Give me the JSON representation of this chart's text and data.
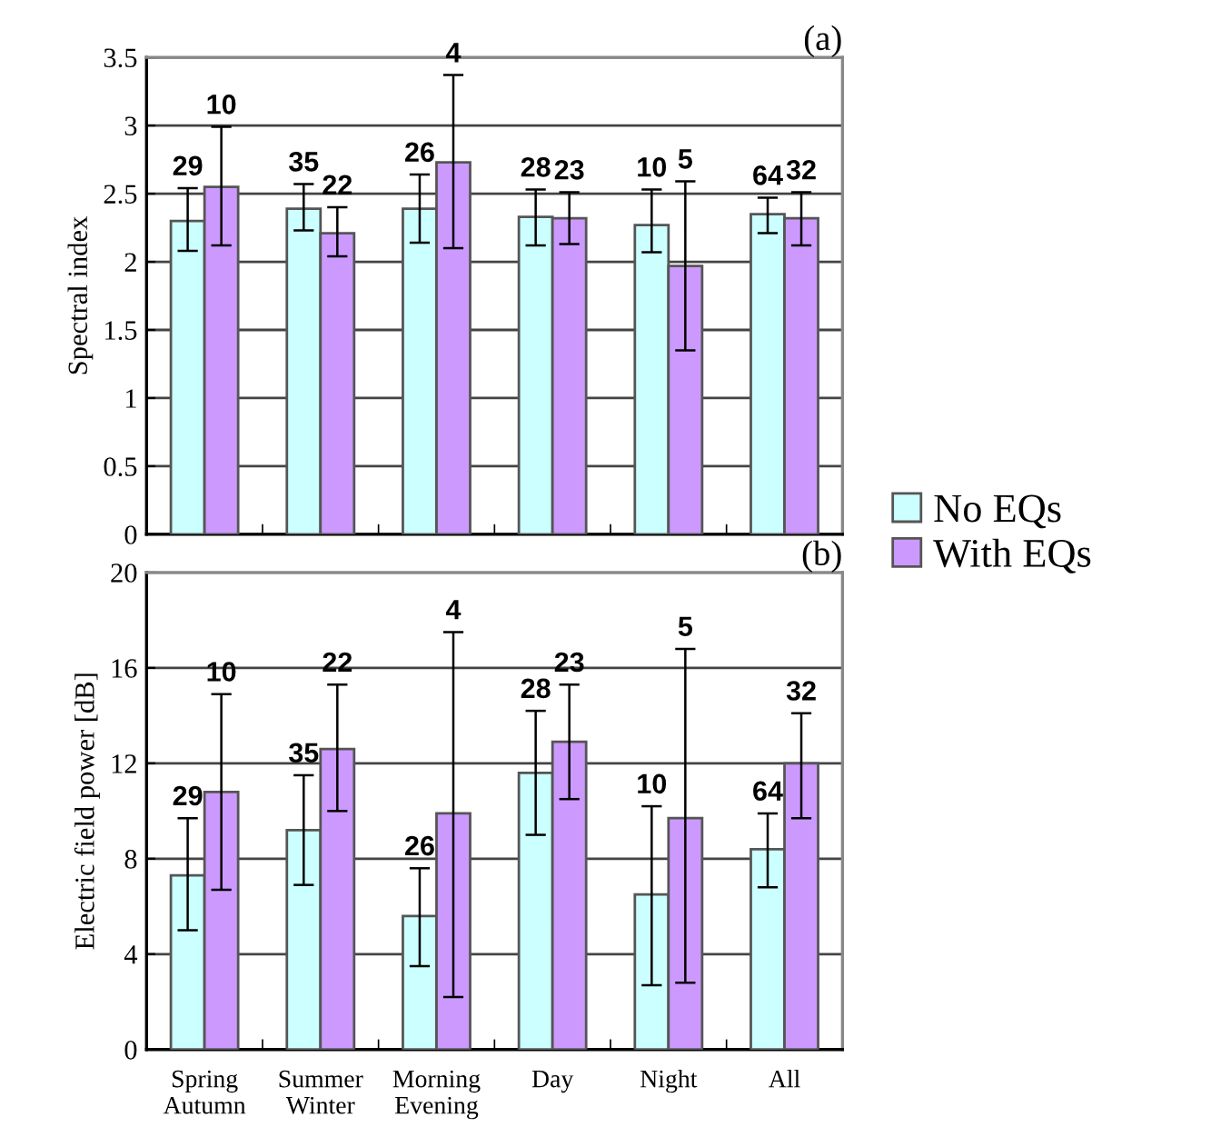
{
  "chart_data": [
    {
      "type": "bar",
      "title": "(a)",
      "ylabel": "Spectral index",
      "categories": [
        null,
        null,
        null,
        null,
        null,
        null
      ],
      "ylim": [
        0,
        3.5
      ],
      "yticks": [
        0,
        0.5,
        1,
        1.5,
        2,
        2.5,
        3,
        3.5
      ],
      "grid": "y",
      "legend": "right",
      "series": [
        {
          "name": "No EQs",
          "color": "#ccffff",
          "values": [
            2.3,
            2.39,
            2.39,
            2.33,
            2.27,
            2.35
          ],
          "errors": [
            [
              2.08,
              2.54
            ],
            [
              2.23,
              2.57
            ],
            [
              2.14,
              2.64
            ],
            [
              2.12,
              2.53
            ],
            [
              2.07,
              2.53
            ],
            [
              2.21,
              2.47
            ]
          ]
        },
        {
          "name": "With EQs",
          "color": "#cc99ff",
          "values": [
            2.55,
            2.21,
            2.73,
            2.32,
            1.97,
            2.32
          ],
          "errors": [
            [
              2.12,
              2.99
            ],
            [
              2.04,
              2.4
            ],
            [
              2.1,
              3.37
            ],
            [
              2.13,
              2.51
            ],
            [
              1.35,
              2.59
            ],
            [
              2.12,
              2.51
            ]
          ]
        }
      ],
      "annotations": [
        "29",
        "10",
        "35",
        "22",
        "26",
        "4",
        "28",
        "23",
        "10",
        "5",
        "64",
        "32"
      ]
    },
    {
      "type": "bar",
      "title": "(b)",
      "ylabel": "Electric field power [dB]",
      "categories": [
        "Spring\nAutumn",
        "Summer\nWinter",
        "Morning\nEvening",
        "Day",
        "Night",
        "All"
      ],
      "ylim": [
        0,
        20
      ],
      "yticks": [
        0,
        4,
        8,
        12,
        16,
        20
      ],
      "grid": "y",
      "series": [
        {
          "color": "#ccffff",
          "values": [
            7.3,
            9.2,
            5.6,
            11.6,
            6.5,
            8.4
          ],
          "errors": [
            [
              5.0,
              9.7
            ],
            [
              6.9,
              11.5
            ],
            [
              3.5,
              7.6
            ],
            [
              9.0,
              14.2
            ],
            [
              2.7,
              10.2
            ],
            [
              6.8,
              9.9
            ]
          ]
        },
        {
          "color": "#cc99ff",
          "values": [
            10.8,
            12.6,
            9.9,
            12.9,
            9.7,
            12.0
          ],
          "errors": [
            [
              6.7,
              14.9
            ],
            [
              10.0,
              15.3
            ],
            [
              2.2,
              17.5
            ],
            [
              10.5,
              15.3
            ],
            [
              2.8,
              16.8
            ],
            [
              9.7,
              14.1
            ]
          ]
        }
      ],
      "annotations": [
        "29",
        "10",
        "35",
        "22",
        "26",
        "4",
        "28",
        "23",
        "10",
        "5",
        "64",
        "32"
      ]
    }
  ]
}
